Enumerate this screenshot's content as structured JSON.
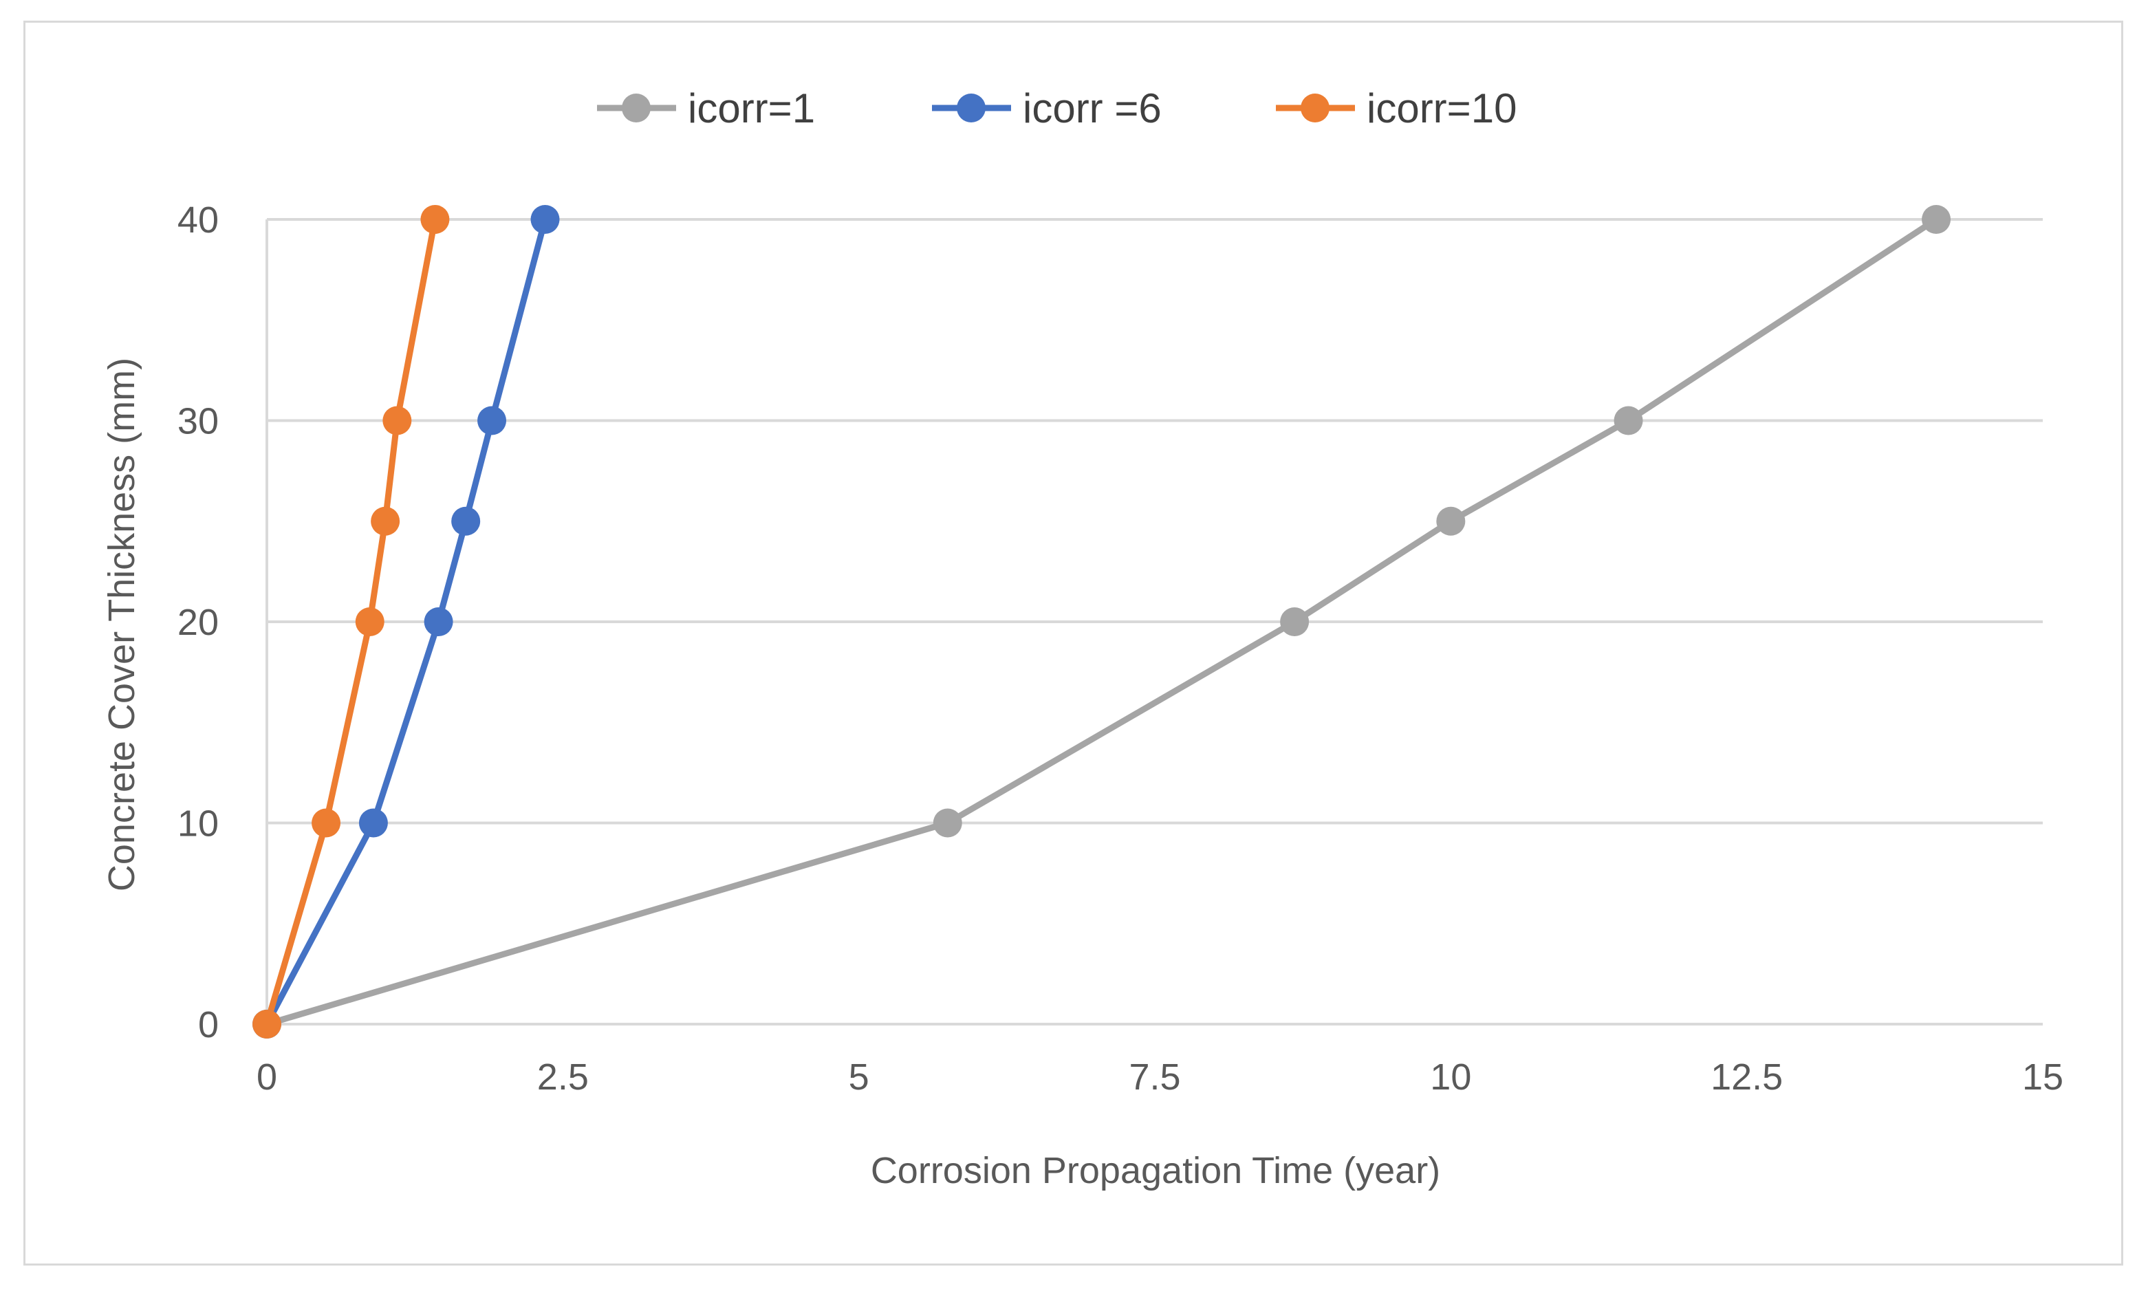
{
  "chart_data": {
    "type": "line",
    "title": "",
    "xlabel": "Corrosion Propagation Time (year)",
    "ylabel": "Concrete Cover Thickness (mm)",
    "xlim": [
      0,
      15
    ],
    "ylim": [
      0,
      40
    ],
    "xticks": [
      0,
      2.5,
      5,
      7.5,
      10,
      12.5,
      15
    ],
    "xtick_labels": [
      "0",
      "2.5",
      "5",
      "7.5",
      "10",
      "12.5",
      "15"
    ],
    "yticks": [
      0,
      10,
      20,
      30,
      40
    ],
    "ytick_labels": [
      "0",
      "10",
      "20",
      "30",
      "40"
    ],
    "grid": "horizontal",
    "legend_position": "top",
    "series": [
      {
        "name": "icorr=1",
        "color": "#a5a5a5",
        "points": [
          [
            0,
            0
          ],
          [
            5.75,
            10
          ],
          [
            8.68,
            20
          ],
          [
            10,
            25
          ],
          [
            11.5,
            30
          ],
          [
            14.1,
            40
          ]
        ]
      },
      {
        "name": "icorr =6",
        "color": "#4472c4",
        "points": [
          [
            0,
            0
          ],
          [
            0.9,
            10
          ],
          [
            1.45,
            20
          ],
          [
            1.68,
            25
          ],
          [
            1.9,
            30
          ],
          [
            2.35,
            40
          ]
        ]
      },
      {
        "name": "icorr=10",
        "color": "#ed7d31",
        "points": [
          [
            0,
            0
          ],
          [
            0.5,
            10
          ],
          [
            0.87,
            20
          ],
          [
            1.0,
            25
          ],
          [
            1.1,
            30
          ],
          [
            1.42,
            40
          ]
        ]
      }
    ]
  }
}
